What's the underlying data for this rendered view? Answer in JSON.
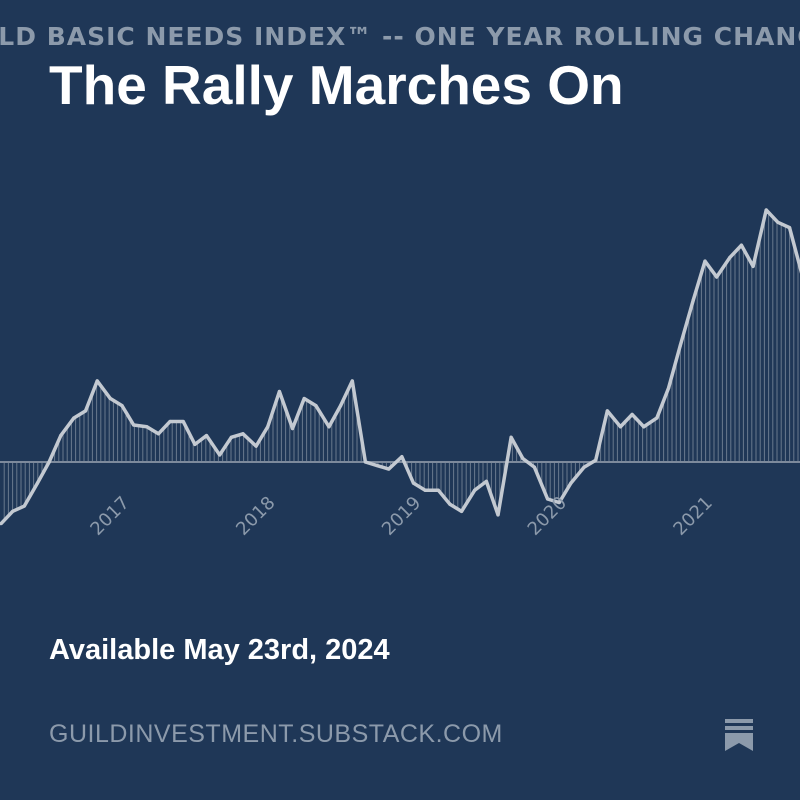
{
  "banner_text": "ILD BASIC NEEDS INDEX™ -- ONE YEAR ROLLING CHANGE",
  "post": {
    "title": "The Rally Marches On",
    "subtitle": "Available May 23rd, 2024",
    "site": "GUILDINVESTMENT.SUBSTACK.COM",
    "bookmark_icon": "bookmark-icon"
  },
  "colors": {
    "background": "#1f3757",
    "line": "#c3c9d1",
    "baseline": "#7d8a9c",
    "muted_text": "#8c9aab",
    "title": "#ffffff"
  },
  "chart_data": {
    "type": "line",
    "title": "ILD BASIC NEEDS INDEX™ -- ONE YEAR ROLLING CHANGE",
    "x_tick_labels": [
      "2017",
      "2018",
      "2019",
      "2020",
      "2021"
    ],
    "x_ticks": [
      2017.0,
      2018.0,
      2019.0,
      2020.0,
      2021.0
    ],
    "xlim": [
      2016.2,
      2021.7
    ],
    "ylim": [
      -6,
      16
    ],
    "baseline": 0,
    "fill": "vertical-hatch to baseline",
    "grid": false,
    "legend": "none",
    "x": [
      2016.17,
      2016.25,
      2016.33,
      2016.42,
      2016.5,
      2016.58,
      2016.67,
      2016.75,
      2016.83,
      2016.92,
      2017.0,
      2017.08,
      2017.17,
      2017.25,
      2017.33,
      2017.42,
      2017.5,
      2017.58,
      2017.67,
      2017.75,
      2017.83,
      2017.92,
      2018.0,
      2018.08,
      2018.17,
      2018.25,
      2018.33,
      2018.42,
      2018.5,
      2018.58,
      2018.67,
      2018.75,
      2018.83,
      2018.92,
      2019.0,
      2019.08,
      2019.17,
      2019.25,
      2019.33,
      2019.42,
      2019.5,
      2019.58,
      2019.67,
      2019.75,
      2019.83,
      2019.92,
      2020.0,
      2020.08,
      2020.17,
      2020.25,
      2020.33,
      2020.42,
      2020.5,
      2020.58,
      2020.67,
      2020.75,
      2020.83,
      2020.92,
      2021.0,
      2021.08,
      2021.17,
      2021.25,
      2021.33,
      2021.42,
      2021.5,
      2021.58,
      2021.67
    ],
    "y": [
      -3.5,
      -2.8,
      -2.5,
      -1.2,
      0,
      1.5,
      2.5,
      2.9,
      4.6,
      3.6,
      3.2,
      2.1,
      2.0,
      1.6,
      2.3,
      2.3,
      1.0,
      1.5,
      0.4,
      1.4,
      1.6,
      0.9,
      2.0,
      4.0,
      1.9,
      3.6,
      3.2,
      2.0,
      3.2,
      4.6,
      0,
      -0.2,
      -0.4,
      0.3,
      -1.2,
      -1.6,
      -1.6,
      -2.4,
      -2.8,
      -1.6,
      -1.1,
      -3.0,
      1.4,
      0.2,
      -0.3,
      -2.1,
      -2.3,
      -1.2,
      -0.3,
      0.1,
      2.9,
      2.0,
      2.7,
      2.0,
      2.5,
      4.2,
      6.6,
      9.2,
      11.4,
      10.5,
      11.6,
      12.3,
      11.1,
      14.3,
      13.6,
      13.3,
      10.5
    ]
  }
}
